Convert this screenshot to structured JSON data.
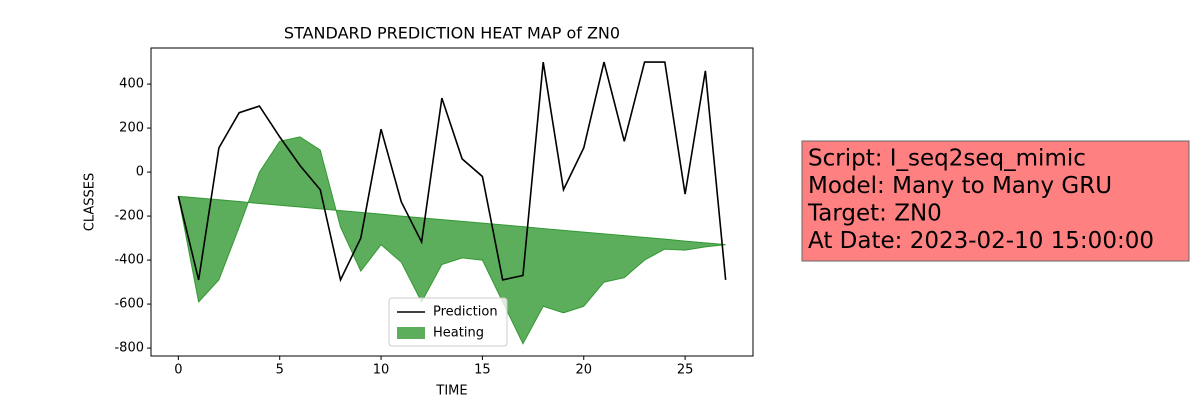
{
  "chart_data": {
    "type": "line",
    "title": "STANDARD PREDICTION HEAT MAP of ZN0",
    "xlabel": "TIME",
    "ylabel": "CLASSES",
    "x": [
      0,
      1,
      2,
      3,
      4,
      5,
      6,
      7,
      8,
      9,
      10,
      11,
      12,
      13,
      14,
      15,
      16,
      17,
      18,
      19,
      20,
      21,
      22,
      23,
      24,
      25,
      26,
      27
    ],
    "series": [
      {
        "name": "Prediction",
        "type": "line",
        "color": "#000000",
        "values": [
          -110,
          -490,
          110,
          270,
          300,
          160,
          30,
          -80,
          -490,
          -300,
          195,
          -136,
          -318,
          336,
          60,
          -20,
          -490,
          -470,
          500,
          -80,
          110,
          500,
          140,
          500,
          500,
          -100,
          460,
          -490
        ]
      },
      {
        "name": "Heating",
        "type": "area",
        "color": "#339933",
        "values": [
          -110,
          -590,
          -490,
          -250,
          0,
          140,
          160,
          100,
          -250,
          -450,
          -330,
          -410,
          -590,
          -420,
          -390,
          -400,
          -590,
          -780,
          -610,
          -640,
          -610,
          -500,
          -480,
          -400,
          -350,
          -355,
          -340,
          -330
        ],
        "base": [
          -110,
          -118,
          -126,
          -134,
          -143,
          -151,
          -159,
          -167,
          -175,
          -183,
          -191,
          -200,
          -208,
          -216,
          -224,
          -232,
          -240,
          -248,
          -257,
          -265,
          -273,
          -281,
          -289,
          -297,
          -305,
          -314,
          -322,
          -330
        ]
      }
    ],
    "xlim": [
      -1.35,
      28.35
    ],
    "ylim": [
      -836,
      564
    ],
    "xticks": [
      0,
      5,
      10,
      15,
      20,
      25
    ],
    "yticks": [
      -800,
      -600,
      -400,
      -200,
      0,
      200,
      400
    ],
    "legend": "lower center",
    "annotation": [
      "Script: I_seq2seq_mimic",
      "Model: Many to Many GRU",
      "Target: ZN0",
      "At Date: 2023-02-10 15:00:00"
    ],
    "annotation_color": "#ff8080"
  }
}
